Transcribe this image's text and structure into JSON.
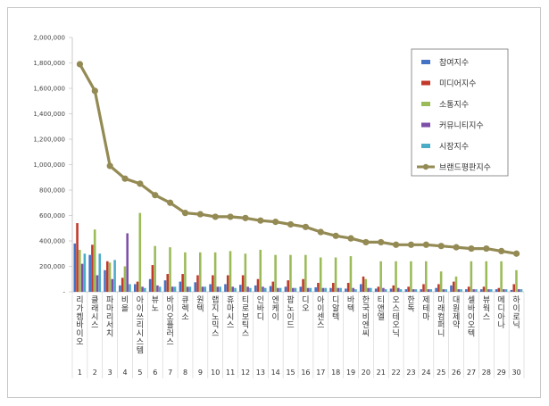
{
  "chart_data": {
    "type": "bar",
    "ylim": [
      0,
      2000000
    ],
    "yticks": [
      "-",
      "200,000",
      "400,000",
      "600,000",
      "800,000",
      "1,000,000",
      "1,200,000",
      "1,400,000",
      "1,600,000",
      "1,800,000",
      "2,000,000"
    ],
    "categories": [
      "리가켐바이오",
      "클래시스",
      "파마리서치",
      "비올",
      "아이쓰리시스템",
      "뷰노",
      "바이오플러스",
      "큐렉소",
      "원텍",
      "랩지노믹스",
      "휴마시스",
      "티로보틱스",
      "인바디",
      "엔케이",
      "팝노이드",
      "디오",
      "아이센스",
      "디알텍",
      "바텍",
      "한국비엔씨",
      "티앤엘",
      "오스테오닉",
      "한독",
      "제테마",
      "미래컴퍼니",
      "대원제약",
      "셀바이오텍",
      "뷰웍스",
      "메디아나",
      "하이로닉"
    ],
    "category_numbers": [
      "1",
      "2",
      "3",
      "4",
      "5",
      "6",
      "7",
      "8",
      "9",
      "10",
      "11",
      "12",
      "13",
      "14",
      "15",
      "16",
      "17",
      "18",
      "19",
      "20",
      "21",
      "22",
      "23",
      "24",
      "25",
      "26",
      "27",
      "28",
      "29",
      "30"
    ],
    "legend_position": "top-right",
    "series": [
      {
        "name": "참여지수",
        "type": "bar",
        "color": "#4472c4",
        "values": [
          380000,
          290000,
          170000,
          50000,
          60000,
          100000,
          90000,
          80000,
          75000,
          60000,
          60000,
          55000,
          50000,
          45000,
          40000,
          40000,
          35000,
          30000,
          25000,
          60000,
          25000,
          25000,
          20000,
          20000,
          30000,
          50000,
          20000,
          20000,
          20000,
          15000
        ]
      },
      {
        "name": "미디어지수",
        "type": "bar",
        "color": "#c0392b",
        "values": [
          540000,
          370000,
          240000,
          110000,
          80000,
          210000,
          140000,
          140000,
          130000,
          130000,
          130000,
          130000,
          100000,
          80000,
          90000,
          100000,
          70000,
          70000,
          70000,
          120000,
          40000,
          50000,
          40000,
          60000,
          60000,
          80000,
          40000,
          40000,
          30000,
          60000
        ]
      },
      {
        "name": "소통지수",
        "type": "bar",
        "color": "#9bbb59",
        "values": [
          330000,
          490000,
          230000,
          200000,
          620000,
          360000,
          350000,
          310000,
          310000,
          310000,
          320000,
          300000,
          330000,
          290000,
          290000,
          290000,
          270000,
          270000,
          280000,
          100000,
          240000,
          240000,
          240000,
          240000,
          160000,
          120000,
          240000,
          240000,
          240000,
          170000
        ]
      },
      {
        "name": "커뮤니티지수",
        "type": "bar",
        "color": "#7d4fa8",
        "values": [
          220000,
          130000,
          100000,
          460000,
          40000,
          50000,
          40000,
          40000,
          40000,
          40000,
          40000,
          40000,
          40000,
          30000,
          30000,
          30000,
          30000,
          30000,
          30000,
          30000,
          30000,
          30000,
          20000,
          20000,
          20000,
          20000,
          20000,
          20000,
          20000,
          20000
        ]
      },
      {
        "name": "시장지수",
        "type": "bar",
        "color": "#4bacc6",
        "values": [
          300000,
          300000,
          250000,
          60000,
          30000,
          40000,
          40000,
          40000,
          40000,
          40000,
          30000,
          30000,
          30000,
          30000,
          30000,
          30000,
          30000,
          30000,
          20000,
          30000,
          20000,
          20000,
          20000,
          20000,
          20000,
          20000,
          20000,
          20000,
          20000,
          20000
        ]
      },
      {
        "name": "브랜드평판지수",
        "type": "line",
        "color": "#948a54",
        "values": [
          1790000,
          1580000,
          990000,
          890000,
          850000,
          760000,
          700000,
          620000,
          610000,
          590000,
          590000,
          580000,
          560000,
          550000,
          530000,
          510000,
          470000,
          440000,
          420000,
          390000,
          390000,
          370000,
          370000,
          370000,
          360000,
          350000,
          340000,
          340000,
          320000,
          300000
        ]
      }
    ]
  }
}
